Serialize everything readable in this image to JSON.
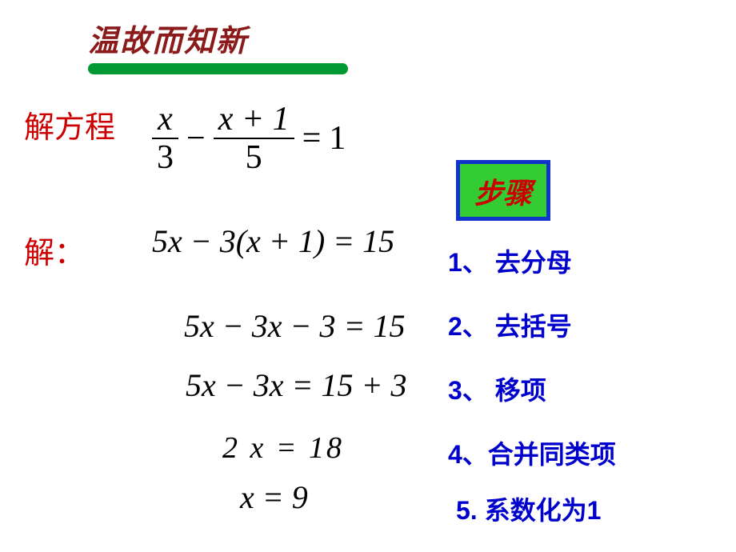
{
  "title": "温故而知新",
  "labelSolve": "解方程",
  "labelSolution": "解：",
  "equation": {
    "frac1num": "x",
    "frac1den": "3",
    "minus": "−",
    "frac2num": "x + 1",
    "frac2den": "5",
    "eqSign": "=",
    "rhs": "1"
  },
  "lines": {
    "l1": "5x − 3(x + 1) = 15",
    "l2": "5x − 3x − 3 = 15",
    "l3": "5x − 3x = 15 + 3",
    "l4": "2 x  =  18",
    "l5": "x = 9"
  },
  "stepsBadge": "步骤",
  "steps": {
    "s1": "1、  去分母",
    "s2": "2、  去括号",
    "s3": "3、  移项",
    "s4": "4、合并同类项",
    "s5": "5. 系数化为1"
  },
  "colors": {
    "titleText": "#8b1a1a",
    "underline": "#009933",
    "redLabel": "#cc0000",
    "mathText": "#000000",
    "stepText": "#0000cc",
    "badgeBg": "#33cc33",
    "badgeBorder": "#1133cc",
    "background": "#ffffff"
  }
}
